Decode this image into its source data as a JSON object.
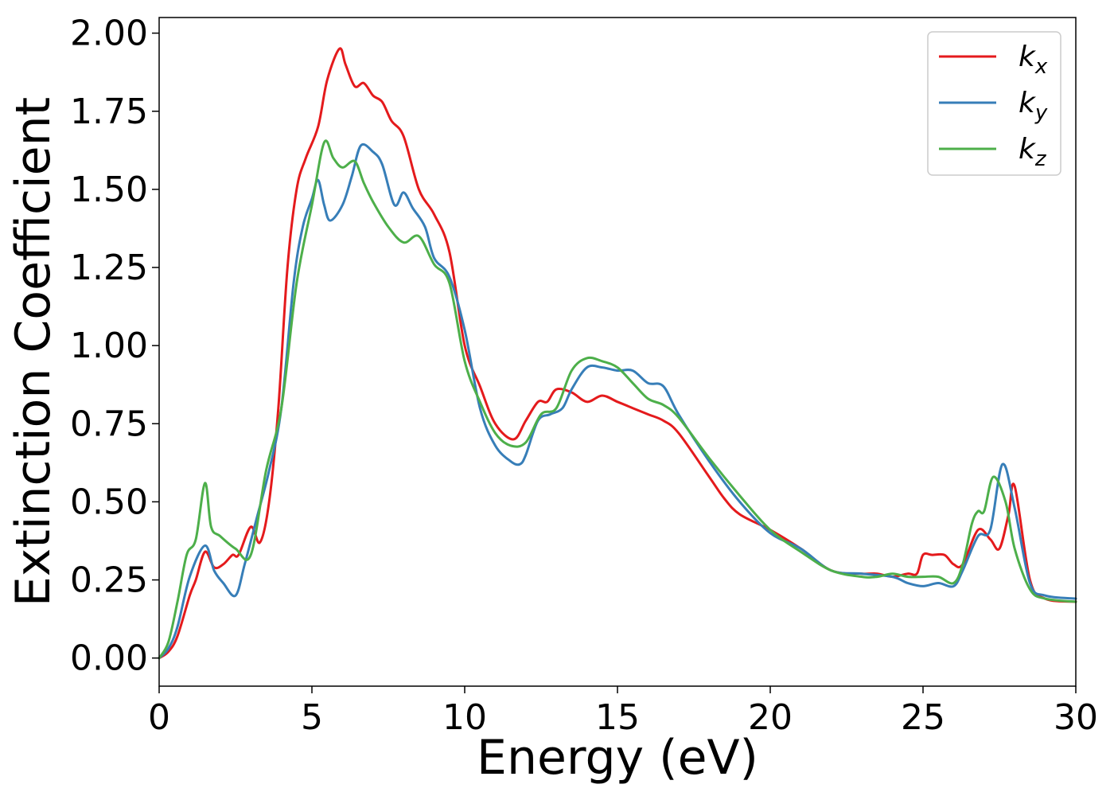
{
  "chart_data": {
    "type": "line",
    "title": "",
    "xlabel": "Energy (eV)",
    "ylabel": "Extinction Coefficient",
    "xlim": [
      0,
      30
    ],
    "ylim": [
      -0.09,
      2.05
    ],
    "xticks": [
      0,
      5,
      10,
      15,
      20,
      25,
      30
    ],
    "xtick_labels": [
      "0",
      "5",
      "10",
      "15",
      "20",
      "25",
      "30"
    ],
    "yticks": [
      0.0,
      0.25,
      0.5,
      0.75,
      1.0,
      1.25,
      1.5,
      1.75,
      2.0
    ],
    "ytick_labels": [
      "0.00",
      "0.25",
      "0.50",
      "0.75",
      "1.00",
      "1.25",
      "1.50",
      "1.75",
      "2.00"
    ],
    "grid": false,
    "legend_position": "top-right",
    "series": [
      {
        "name": "k",
        "subscript": "x",
        "color": "#e41a1c",
        "x": [
          0,
          0.3,
          0.6,
          1.0,
          1.2,
          1.5,
          1.8,
          2.1,
          2.4,
          2.6,
          3.0,
          3.3,
          3.6,
          3.9,
          4.2,
          4.5,
          4.8,
          5.2,
          5.5,
          5.9,
          6.1,
          6.4,
          6.7,
          7.0,
          7.3,
          7.6,
          8.0,
          8.5,
          9.0,
          9.5,
          10.0,
          10.5,
          11.0,
          11.6,
          12.0,
          12.4,
          12.7,
          13.0,
          13.5,
          14.0,
          14.5,
          15.0,
          15.5,
          16.0,
          16.5,
          17.0,
          18.0,
          18.5,
          19.0,
          20.0,
          21.0,
          22.0,
          23.0,
          23.5,
          24.0,
          24.5,
          24.8,
          25.0,
          25.3,
          25.7,
          26.0,
          26.3,
          26.8,
          27.2,
          27.5,
          27.8,
          28.0,
          28.5,
          29.0,
          30.0
        ],
        "y": [
          0.0,
          0.02,
          0.07,
          0.2,
          0.25,
          0.34,
          0.29,
          0.3,
          0.33,
          0.33,
          0.42,
          0.37,
          0.5,
          0.8,
          1.25,
          1.5,
          1.6,
          1.7,
          1.85,
          1.95,
          1.9,
          1.83,
          1.84,
          1.8,
          1.78,
          1.72,
          1.67,
          1.5,
          1.42,
          1.3,
          1.0,
          0.87,
          0.75,
          0.7,
          0.76,
          0.82,
          0.82,
          0.86,
          0.85,
          0.82,
          0.84,
          0.82,
          0.8,
          0.78,
          0.76,
          0.72,
          0.58,
          0.51,
          0.46,
          0.41,
          0.35,
          0.28,
          0.27,
          0.27,
          0.26,
          0.27,
          0.27,
          0.33,
          0.33,
          0.33,
          0.3,
          0.3,
          0.41,
          0.38,
          0.35,
          0.46,
          0.55,
          0.25,
          0.19,
          0.18
        ]
      },
      {
        "name": "k",
        "subscript": "y",
        "color": "#377eb8",
        "x": [
          0,
          0.3,
          0.6,
          1.0,
          1.5,
          1.8,
          2.1,
          2.5,
          2.8,
          3.2,
          3.6,
          4.0,
          4.4,
          4.7,
          5.0,
          5.2,
          5.4,
          5.6,
          6.0,
          6.3,
          6.6,
          7.0,
          7.3,
          7.7,
          8.0,
          8.3,
          8.7,
          9.0,
          9.5,
          10.0,
          10.5,
          11.0,
          11.5,
          11.8,
          12.0,
          12.4,
          12.8,
          13.2,
          13.5,
          14.0,
          14.5,
          15.0,
          15.5,
          16.0,
          16.5,
          17.0,
          18.0,
          19.0,
          20.0,
          21.0,
          22.0,
          23.0,
          24.0,
          24.5,
          25.0,
          25.5,
          26.0,
          26.3,
          26.8,
          27.2,
          27.6,
          28.0,
          28.5,
          29.0,
          30.0
        ],
        "y": [
          0.0,
          0.03,
          0.1,
          0.26,
          0.36,
          0.28,
          0.24,
          0.2,
          0.3,
          0.45,
          0.6,
          0.8,
          1.2,
          1.38,
          1.47,
          1.53,
          1.45,
          1.4,
          1.45,
          1.54,
          1.64,
          1.62,
          1.58,
          1.45,
          1.49,
          1.44,
          1.38,
          1.28,
          1.22,
          1.05,
          0.8,
          0.68,
          0.63,
          0.62,
          0.65,
          0.76,
          0.78,
          0.8,
          0.86,
          0.93,
          0.93,
          0.92,
          0.92,
          0.88,
          0.87,
          0.78,
          0.63,
          0.5,
          0.4,
          0.35,
          0.28,
          0.27,
          0.26,
          0.24,
          0.23,
          0.24,
          0.23,
          0.28,
          0.39,
          0.41,
          0.62,
          0.48,
          0.24,
          0.2,
          0.19
        ]
      },
      {
        "name": "k",
        "subscript": "z",
        "color": "#4daf4a",
        "x": [
          0,
          0.3,
          0.6,
          0.9,
          1.2,
          1.5,
          1.7,
          2.0,
          2.5,
          3.0,
          3.5,
          4.0,
          4.5,
          5.0,
          5.4,
          5.7,
          6.0,
          6.4,
          6.7,
          7.0,
          7.5,
          8.0,
          8.5,
          9.0,
          9.5,
          10.0,
          10.5,
          11.0,
          11.5,
          12.0,
          12.5,
          13.0,
          13.5,
          14.0,
          14.5,
          15.0,
          15.5,
          16.0,
          16.5,
          17.0,
          18.0,
          19.0,
          20.0,
          21.0,
          22.0,
          23.0,
          23.5,
          24.0,
          24.5,
          25.0,
          25.5,
          26.0,
          26.3,
          26.6,
          26.8,
          27.0,
          27.3,
          27.7,
          28.0,
          28.5,
          29.0,
          30.0
        ],
        "y": [
          0.0,
          0.05,
          0.18,
          0.33,
          0.38,
          0.56,
          0.42,
          0.39,
          0.35,
          0.33,
          0.6,
          0.8,
          1.2,
          1.45,
          1.65,
          1.6,
          1.57,
          1.59,
          1.52,
          1.46,
          1.38,
          1.33,
          1.35,
          1.26,
          1.2,
          0.95,
          0.82,
          0.72,
          0.68,
          0.69,
          0.78,
          0.8,
          0.92,
          0.96,
          0.95,
          0.93,
          0.88,
          0.83,
          0.81,
          0.77,
          0.64,
          0.52,
          0.41,
          0.34,
          0.28,
          0.26,
          0.26,
          0.27,
          0.26,
          0.26,
          0.26,
          0.24,
          0.3,
          0.43,
          0.47,
          0.47,
          0.58,
          0.5,
          0.35,
          0.22,
          0.19,
          0.18
        ]
      }
    ]
  }
}
